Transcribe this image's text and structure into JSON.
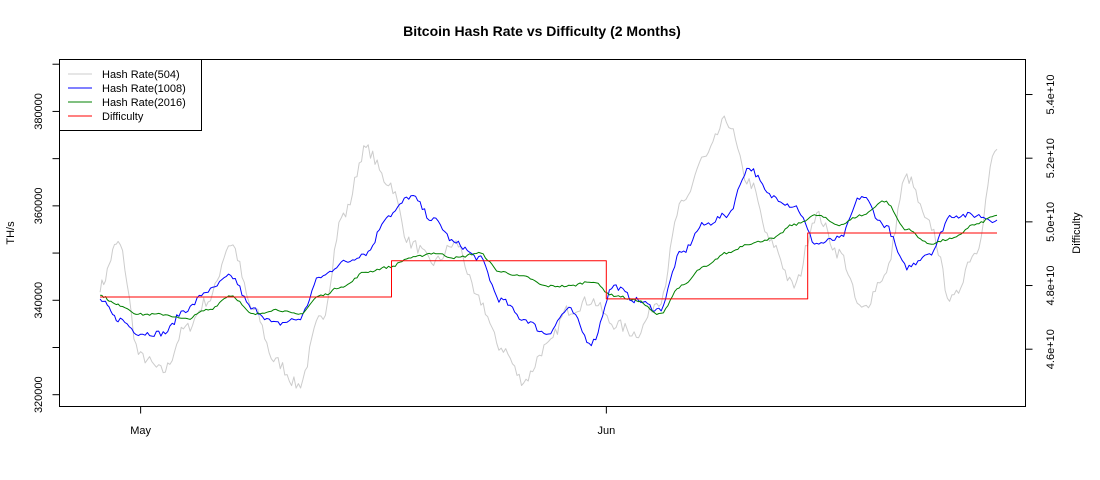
{
  "chart_data": {
    "type": "line",
    "title": "Bitcoin Hash Rate vs Difficulty (2 Months)",
    "xlabel": "",
    "ylabel": "TH/s",
    "ylabel_right": "Difficulty",
    "x_ticks": [
      {
        "label": "May",
        "day": 0
      },
      {
        "label": "Jun",
        "day": 31
      }
    ],
    "y_ticks_left": [
      "320000",
      "340000",
      "360000",
      "380000"
    ],
    "y_ticks_left_values": [
      320000,
      340000,
      360000,
      380000
    ],
    "y_ticks_right": [
      "4.6e+10",
      "4.8e+10",
      "5.0e+10",
      "5.2e+10",
      "5.4e+10"
    ],
    "y_ticks_right_values": [
      46000000000.0,
      48000000000.0,
      50000000000.0,
      52000000000.0,
      54000000000.0
    ],
    "ylim_left": [
      317500,
      391000
    ],
    "ylim_right": [
      44200000000.0,
      55100000000.0
    ],
    "x_range_days": [
      -5.4,
      58.9
    ],
    "grid": false,
    "legend_position": "topleft",
    "x_days": [
      -2.7,
      -1.5,
      0,
      1.5,
      3,
      4.5,
      6,
      7.5,
      9,
      10.5,
      12,
      13.5,
      15,
      16.5,
      18,
      19.5,
      21,
      22.5,
      24,
      25.5,
      27,
      28.5,
      30,
      31.5,
      33,
      34.5,
      36,
      37.5,
      39,
      40.5,
      42,
      43.5,
      45,
      46.5,
      48,
      49.5,
      51,
      52.5,
      54,
      55.5,
      57
    ],
    "series": [
      {
        "name": "Hash Rate(504)",
        "color": "#cccccc",
        "axis": "left",
        "values": [
          343000,
          352000,
          328000,
          325000,
          334000,
          340000,
          352000,
          338000,
          327000,
          322000,
          336000,
          358000,
          372000,
          365000,
          352000,
          348000,
          352000,
          340000,
          330000,
          323000,
          330000,
          338000,
          340000,
          335000,
          333000,
          340000,
          360000,
          370000,
          378000,
          365000,
          352000,
          343000,
          358000,
          350000,
          338000,
          345000,
          366000,
          356000,
          340000,
          350000,
          372000
        ]
      },
      {
        "name": "Hash Rate(1008)",
        "color": "#0000ff",
        "axis": "left",
        "values": [
          340000,
          336000,
          333000,
          333000,
          338000,
          342000,
          345000,
          338000,
          335000,
          336000,
          345000,
          348000,
          350000,
          358000,
          362000,
          357000,
          352000,
          349000,
          340000,
          336000,
          333000,
          338000,
          331000,
          343000,
          340000,
          338000,
          350000,
          356000,
          358000,
          368000,
          362000,
          360000,
          352000,
          353000,
          362000,
          356000,
          347000,
          350000,
          358000,
          358000,
          357000
        ]
      },
      {
        "name": "Hash Rate(2016)",
        "color": "#008000",
        "axis": "left",
        "values": [
          341000,
          339000,
          337000,
          337000,
          336000,
          338000,
          341000,
          337000,
          338000,
          337000,
          341000,
          343000,
          346000,
          347000,
          349000,
          350000,
          349000,
          350000,
          346000,
          345000,
          343000,
          343000,
          344000,
          341000,
          340000,
          337000,
          343000,
          347000,
          350000,
          352000,
          353000,
          356000,
          358000,
          356000,
          358000,
          361000,
          355000,
          352000,
          353000,
          356000,
          358000
        ]
      },
      {
        "name": "Difficulty",
        "color": "#ff0000",
        "axis": "right",
        "step_days": [
          -2.7,
          16.7,
          31.0,
          44.4,
          57.0
        ],
        "step_values": [
          47640000000.0,
          48780000000.0,
          47580000000.0,
          49650000000.0
        ]
      }
    ]
  },
  "legend": {
    "items": [
      "Hash Rate(504)",
      "Hash Rate(1008)",
      "Hash Rate(2016)",
      "Difficulty"
    ],
    "colors": [
      "#cccccc",
      "#0000ff",
      "#008000",
      "#ff0000"
    ]
  }
}
